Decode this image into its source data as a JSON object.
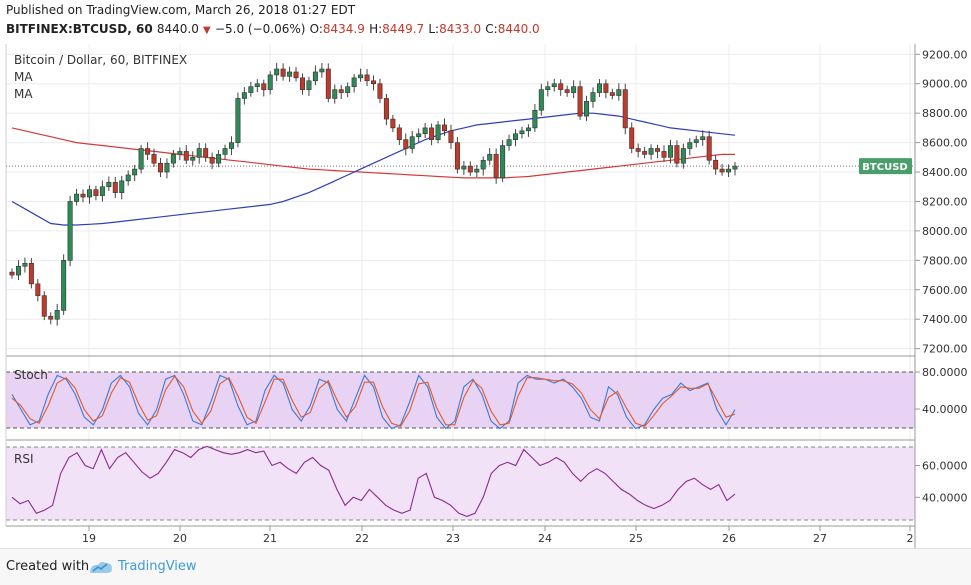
{
  "header": {
    "published": "Published on TradingView.com, March 26, 2018 01:27 EDT",
    "symbol_line": "BITFINEX:BTCUSD, 60",
    "price": "8440.0",
    "change_arrow": "▼",
    "change": "−5.0 (−0.06%)",
    "o_label": "O:",
    "o_value": "8434.9",
    "h_label": "H:",
    "h_value": "8449.7",
    "l_label": "L:",
    "l_value": "8433.0",
    "c_label": "C:",
    "c_value": "8440.0"
  },
  "legend": {
    "title": "Bitcoin / Dollar, 60, BITFINEX",
    "ma1": "MA",
    "ma2": "MA"
  },
  "price_tag": "BTCUSD",
  "footer": {
    "created_with": "Created with",
    "brand": "TradingView"
  },
  "colors": {
    "up": "#2e8b57",
    "down": "#c0392b",
    "ma_blue": "#2f3fb8",
    "ma_red": "#d33a3a",
    "stoch_fill": "#e9d3f5",
    "rsi_fill": "#f2e2f8",
    "rsi_line": "#8b2a8f",
    "tag_bg": "#4a9e6a"
  },
  "chart_data": [
    {
      "type": "candlestick",
      "title": "Bitcoin / Dollar, 60, BITFINEX",
      "x_tick_labels": [
        "19",
        "20",
        "21",
        "22",
        "23",
        "24",
        "25",
        "26",
        "27",
        "2"
      ],
      "y_tick_labels": [
        "9200.00",
        "9000.00",
        "8800.00",
        "8600.00",
        "8400.00",
        "8200.00",
        "8000.00",
        "7800.00",
        "7600.00",
        "7400.00",
        "7200.00"
      ],
      "ylim": [
        7150,
        9270
      ],
      "last_price": 8440.0,
      "close_series": [
        7700,
        7760,
        7780,
        7640,
        7560,
        7420,
        7400,
        7460,
        7800,
        8200,
        8250,
        8230,
        8280,
        8240,
        8300,
        8330,
        8260,
        8340,
        8380,
        8420,
        8560,
        8520,
        8460,
        8400,
        8460,
        8520,
        8540,
        8480,
        8500,
        8560,
        8500,
        8460,
        8520,
        8560,
        8600,
        8900,
        8940,
        8980,
        9000,
        8960,
        9060,
        9100,
        9050,
        9080,
        9040,
        8960,
        9020,
        9080,
        9100,
        8900,
        8960,
        8940,
        8980,
        9040,
        9060,
        9020,
        9000,
        8900,
        8760,
        8700,
        8620,
        8560,
        8640,
        8660,
        8700,
        8620,
        8720,
        8680,
        8600,
        8420,
        8440,
        8400,
        8420,
        8480,
        8520,
        8360,
        8580,
        8620,
        8660,
        8680,
        8700,
        8820,
        8960,
        8980,
        9000,
        8960,
        8940,
        8980,
        8780,
        8880,
        8940,
        9000,
        8940,
        8920,
        8960,
        8700,
        8560,
        8540,
        8520,
        8560,
        8540,
        8500,
        8580,
        8460,
        8560,
        8600,
        8620,
        8640,
        8480,
        8420,
        8400,
        8420,
        8440
      ],
      "series": [
        {
          "values": [
            8700,
            8680,
            8660,
            8640,
            8620,
            8600,
            8590,
            8580,
            8570,
            8560,
            8550,
            8540,
            8530,
            8520,
            8510,
            8500,
            8490,
            8480,
            8470,
            8460,
            8450,
            8440,
            8430,
            8420,
            8415,
            8410,
            8405,
            8400,
            8395,
            8390,
            8385,
            8380,
            8375,
            8370,
            8365,
            8360,
            8360,
            8360,
            8360,
            8365,
            8370,
            8380,
            8390,
            8400,
            8410,
            8420,
            8430,
            8440,
            8450,
            8460,
            8470,
            8480,
            8490,
            8500,
            8510,
            8520,
            8520
          ]
        },
        {
          "values": [
            8200,
            8150,
            8100,
            8050,
            8040,
            8040,
            8045,
            8050,
            8060,
            8070,
            8080,
            8090,
            8100,
            8110,
            8120,
            8130,
            8140,
            8150,
            8160,
            8170,
            8180,
            8200,
            8230,
            8260,
            8300,
            8340,
            8380,
            8420,
            8460,
            8500,
            8540,
            8580,
            8620,
            8650,
            8680,
            8700,
            8720,
            8730,
            8740,
            8750,
            8760,
            8770,
            8780,
            8790,
            8800,
            8800,
            8790,
            8780,
            8760,
            8740,
            8720,
            8700,
            8690,
            8680,
            8670,
            8660,
            8650
          ]
        }
      ]
    },
    {
      "type": "line",
      "title": "Stoch",
      "y_tick_labels": [
        "80.0000",
        "40.0000"
      ],
      "ylim": [
        0,
        100
      ],
      "series": [
        {
          "values": [
            60,
            40,
            20,
            25,
            60,
            85,
            80,
            60,
            30,
            20,
            40,
            75,
            85,
            70,
            35,
            20,
            40,
            80,
            85,
            60,
            25,
            20,
            50,
            85,
            80,
            45,
            20,
            25,
            65,
            85,
            75,
            40,
            25,
            45,
            80,
            75,
            40,
            25,
            55,
            85,
            70,
            30,
            15,
            20,
            50,
            85,
            70,
            30,
            15,
            25,
            70,
            80,
            60,
            25,
            15,
            25,
            75,
            85,
            80,
            80,
            75,
            80,
            70,
            55,
            30,
            25,
            70,
            60,
            30,
            15,
            20,
            40,
            55,
            60,
            75,
            65,
            70,
            75,
            40,
            20,
            40
          ]
        },
        {
          "values": [
            55,
            45,
            28,
            22,
            45,
            75,
            82,
            68,
            40,
            25,
            32,
            62,
            82,
            76,
            48,
            26,
            32,
            66,
            84,
            70,
            38,
            22,
            38,
            74,
            82,
            58,
            30,
            22,
            50,
            80,
            80,
            52,
            30,
            36,
            68,
            78,
            52,
            30,
            44,
            76,
            76,
            44,
            22,
            18,
            38,
            74,
            76,
            42,
            20,
            20,
            56,
            78,
            68,
            38,
            20,
            22,
            58,
            82,
            82,
            80,
            78,
            78,
            74,
            62,
            40,
            28,
            56,
            64,
            42,
            22,
            18,
            32,
            48,
            58,
            70,
            68,
            68,
            74,
            52,
            30,
            34
          ]
        }
      ]
    },
    {
      "type": "line",
      "title": "RSI",
      "y_tick_labels": [
        "60.0000",
        "40.0000"
      ],
      "ylim": [
        22,
        76
      ],
      "series": [
        {
          "values": [
            40,
            36,
            38,
            30,
            32,
            35,
            55,
            65,
            68,
            60,
            58,
            70,
            58,
            65,
            68,
            62,
            56,
            52,
            55,
            62,
            70,
            68,
            65,
            70,
            72,
            70,
            68,
            67,
            68,
            70,
            68,
            69,
            60,
            62,
            58,
            55,
            62,
            65,
            60,
            57,
            45,
            35,
            40,
            38,
            45,
            40,
            35,
            32,
            30,
            32,
            52,
            55,
            40,
            38,
            35,
            30,
            28,
            30,
            40,
            55,
            60,
            62,
            60,
            70,
            65,
            60,
            62,
            65,
            62,
            55,
            50,
            55,
            58,
            55,
            50,
            45,
            42,
            38,
            35,
            33,
            35,
            38,
            45,
            50,
            52,
            48,
            45,
            48,
            38,
            42
          ]
        }
      ]
    }
  ]
}
